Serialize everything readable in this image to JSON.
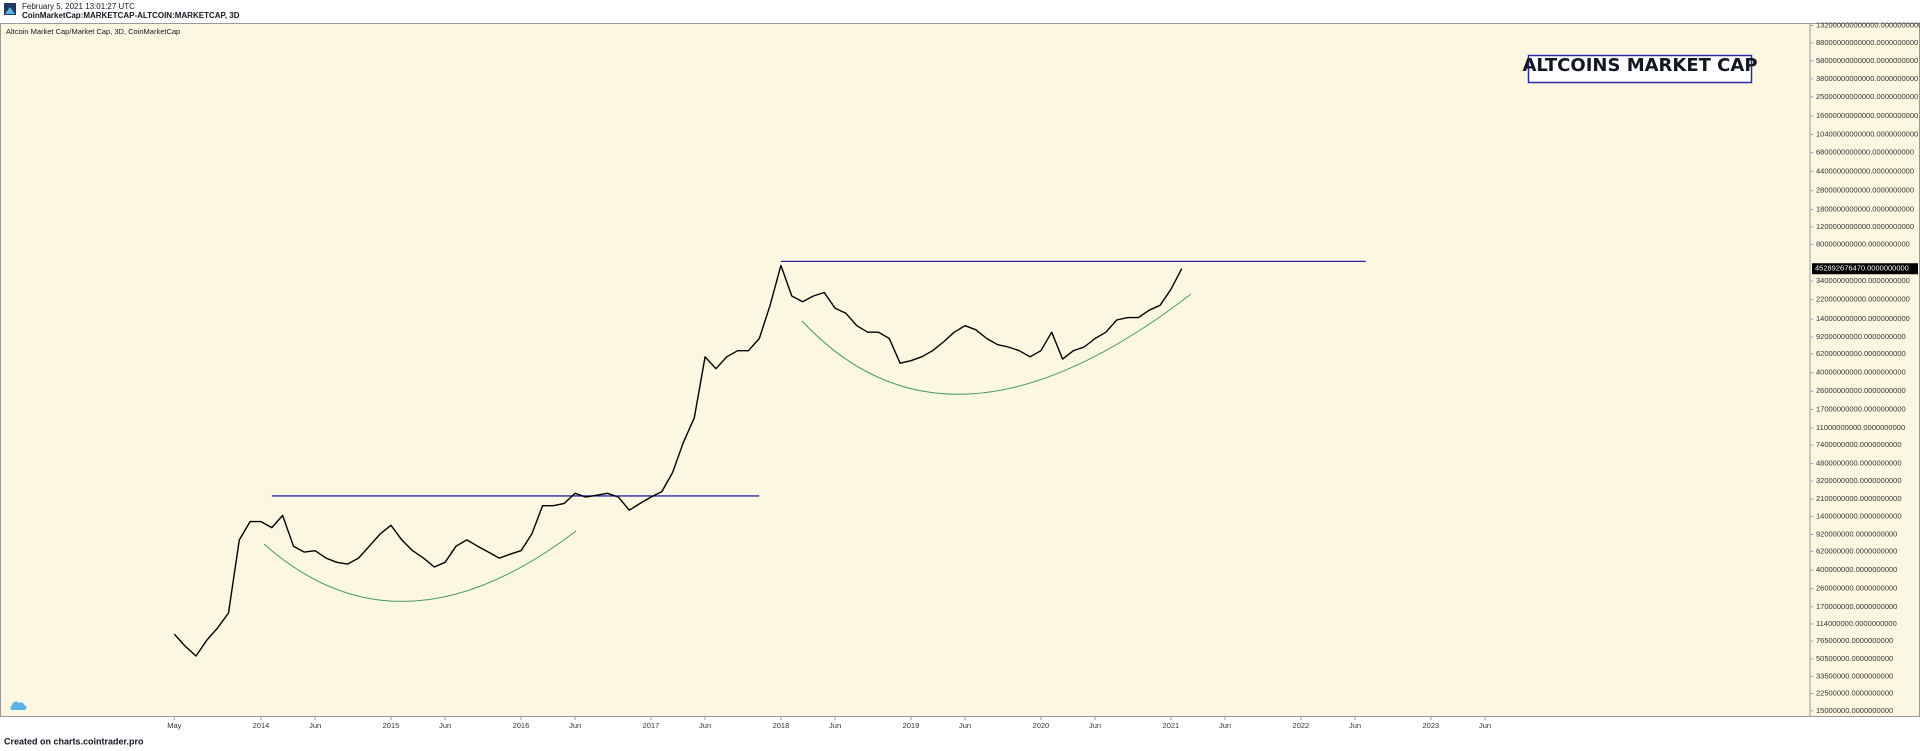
{
  "header": {
    "timestamp": "February 5, 2021 13:01:27 UTC",
    "symbol": "CoinMarketCap:MARKETCAP-ALTCOIN:MARKETCAP, 3D"
  },
  "chart_data": {
    "type": "line",
    "title": "ALTCOINS MARKET CAP",
    "subtitle": "Altcoin Market Cap/Market Cap, 3D, CoinMarketCap",
    "log_scale": true,
    "x": [
      "2013-05",
      "2013-06",
      "2013-07",
      "2013-08",
      "2013-09",
      "2013-10",
      "2013-11",
      "2013-12",
      "2014-01",
      "2014-02",
      "2014-03",
      "2014-04",
      "2014-05",
      "2014-06",
      "2014-07",
      "2014-08",
      "2014-09",
      "2014-10",
      "2014-11",
      "2014-12",
      "2015-01",
      "2015-02",
      "2015-03",
      "2015-04",
      "2015-05",
      "2015-06",
      "2015-07",
      "2015-08",
      "2015-09",
      "2015-10",
      "2015-11",
      "2015-12",
      "2016-01",
      "2016-02",
      "2016-03",
      "2016-04",
      "2016-05",
      "2016-06",
      "2016-07",
      "2016-08",
      "2016-09",
      "2016-10",
      "2016-11",
      "2016-12",
      "2017-01",
      "2017-02",
      "2017-03",
      "2017-04",
      "2017-05",
      "2017-06",
      "2017-07",
      "2017-08",
      "2017-09",
      "2017-10",
      "2017-11",
      "2017-12",
      "2018-01",
      "2018-02",
      "2018-03",
      "2018-04",
      "2018-05",
      "2018-06",
      "2018-07",
      "2018-08",
      "2018-09",
      "2018-10",
      "2018-11",
      "2018-12",
      "2019-01",
      "2019-02",
      "2019-03",
      "2019-04",
      "2019-05",
      "2019-06",
      "2019-07",
      "2019-08",
      "2019-09",
      "2019-10",
      "2019-11",
      "2019-12",
      "2020-01",
      "2020-02",
      "2020-03",
      "2020-04",
      "2020-05",
      "2020-06",
      "2020-07",
      "2020-08",
      "2020-09",
      "2020-10",
      "2020-11",
      "2020-12",
      "2021-01",
      "2021-02"
    ],
    "series": [
      {
        "color": "#000000",
        "values": [
          90000000,
          68000000,
          54000000,
          78000000,
          104000000,
          147000000,
          810000000,
          1240000000,
          1240000000,
          1080000000,
          1430000000,
          700000000,
          610000000,
          630000000,
          530000000,
          480000000,
          460000000,
          530000000,
          700000000,
          930000000,
          1140000000,
          810000000,
          630000000,
          530000000,
          430000000,
          480000000,
          700000000,
          810000000,
          700000000,
          610000000,
          530000000,
          580000000,
          630000000,
          930000000,
          1800000000,
          1800000000,
          1900000000,
          2400000000,
          2200000000,
          2300000000,
          2400000000,
          2200000000,
          1620000000,
          1900000000,
          2200000000,
          2500000000,
          3900000000,
          7900000000,
          14000000000,
          58000000000,
          44000000000,
          58000000000,
          67000000000,
          67000000000,
          89000000000,
          193000000000,
          490000000000,
          240000000000,
          210000000000,
          240000000000,
          260000000000,
          180000000000,
          160000000000,
          120000000000,
          103000000000,
          103000000000,
          89000000000,
          50000000000,
          53000000000,
          58000000000,
          67000000000,
          82000000000,
          103000000000,
          120000000000,
          109000000000,
          89000000000,
          77000000000,
          73000000000,
          67000000000,
          58000000000,
          67000000000,
          103000000000,
          55000000000,
          67000000000,
          73000000000,
          89000000000,
          103000000000,
          137000000000,
          145000000000,
          145000000000,
          172000000000,
          193000000000,
          280000000000,
          452892676470
        ]
      }
    ],
    "last_value": {
      "value": 452892676470,
      "label": "452892676470.0000000000"
    },
    "hlines": [
      {
        "value": 2260000000,
        "x": [
          "2014-02",
          "2017-11"
        ],
        "color": "#2a2aa8"
      },
      {
        "value": 538000000000,
        "x": [
          "2018-01",
          "2022-07"
        ],
        "color": "#2a2aa8"
      }
    ],
    "xlim": [
      "2012-01",
      "2025-12"
    ],
    "xticks": [
      {
        "value": "2013-05",
        "label": "May"
      },
      {
        "value": "2014-01",
        "label": "2014"
      },
      {
        "value": "2014-06",
        "label": "Jun"
      },
      {
        "value": "2015-01",
        "label": "2015"
      },
      {
        "value": "2015-06",
        "label": "Jun"
      },
      {
        "value": "2016-01",
        "label": "2016"
      },
      {
        "value": "2016-06",
        "label": "Jun"
      },
      {
        "value": "2017-01",
        "label": "2017"
      },
      {
        "value": "2017-06",
        "label": "Jun"
      },
      {
        "value": "2018-01",
        "label": "2018"
      },
      {
        "value": "2018-06",
        "label": "Jun"
      },
      {
        "value": "2019-01",
        "label": "2019"
      },
      {
        "value": "2019-06",
        "label": "Jun"
      },
      {
        "value": "2020-01",
        "label": "2020"
      },
      {
        "value": "2020-06",
        "label": "Jun"
      },
      {
        "value": "2021-01",
        "label": "2021"
      },
      {
        "value": "2021-06",
        "label": "Jun"
      },
      {
        "value": "2022-01",
        "label": "2022"
      },
      {
        "value": "2022-06",
        "label": "Jun"
      },
      {
        "value": "2023-01",
        "label": "2023"
      },
      {
        "value": "2023-06",
        "label": "Jun"
      }
    ],
    "ylim": [
      13000000,
      140000000000000
    ],
    "yticks": [
      {
        "value": 15000000,
        "label": "15000000.0000000000"
      },
      {
        "value": 22500000,
        "label": "22500000.0000000000"
      },
      {
        "value": 33500000,
        "label": "33500000.0000000000"
      },
      {
        "value": 50500000,
        "label": "50500000.0000000000"
      },
      {
        "value": 76500000,
        "label": "76500000.0000000000"
      },
      {
        "value": 114000000,
        "label": "114000000.0000000000"
      },
      {
        "value": 170000000,
        "label": "170000000.0000000000"
      },
      {
        "value": 260000000,
        "label": "260000000.0000000000"
      },
      {
        "value": 400000000,
        "label": "400000000.0000000000"
      },
      {
        "value": 620000000,
        "label": "620000000.0000000000"
      },
      {
        "value": 920000000,
        "label": "920000000.0000000000"
      },
      {
        "value": 1400000000,
        "label": "1400000000.0000000000"
      },
      {
        "value": 2100000000,
        "label": "2100000000.0000000000"
      },
      {
        "value": 3200000000,
        "label": "3200000000.0000000000"
      },
      {
        "value": 4800000000,
        "label": "4800000000.0000000000"
      },
      {
        "value": 7400000000,
        "label": "7400000000.0000000000"
      },
      {
        "value": 11000000000,
        "label": "11000000000.0000000000"
      },
      {
        "value": 17000000000,
        "label": "17000000000.0000000000"
      },
      {
        "value": 26000000000,
        "label": "26000000000.0000000000"
      },
      {
        "value": 40000000000,
        "label": "40000000000.0000000000"
      },
      {
        "value": 62000000000,
        "label": "62000000000.0000000000"
      },
      {
        "value": 92000000000,
        "label": "92000000000.0000000000"
      },
      {
        "value": 140000000000,
        "label": "140000000000.0000000000"
      },
      {
        "value": 220000000000,
        "label": "220000000000.0000000000"
      },
      {
        "value": 340000000000,
        "label": "340000000000.0000000000"
      },
      {
        "value": 800000000000,
        "label": "800000000000.0000000000"
      },
      {
        "value": 1200000000000,
        "label": "1200000000000.0000000000"
      },
      {
        "value": 1800000000000,
        "label": "1800000000000.0000000000"
      },
      {
        "value": 2800000000000,
        "label": "2800000000000.0000000000"
      },
      {
        "value": 4400000000000,
        "label": "4400000000000.0000000000"
      },
      {
        "value": 6800000000000,
        "label": "6800000000000.0000000000"
      },
      {
        "value": 10400000000000,
        "label": "10400000000000.0000000000"
      },
      {
        "value": 16000000000000,
        "label": "16000000000000.0000000000"
      },
      {
        "value": 25000000000000,
        "label": "25000000000000.0000000000"
      },
      {
        "value": 38000000000000,
        "label": "38000000000000.0000000000"
      },
      {
        "value": 58000000000000,
        "label": "58000000000000.0000000000"
      },
      {
        "value": 88000000000000,
        "label": "88000000000000.0000000000"
      },
      {
        "value": 132000000000000,
        "label": "132000000000000.0000000000"
      }
    ]
  },
  "footer": "Created on charts.cointrader.pro"
}
